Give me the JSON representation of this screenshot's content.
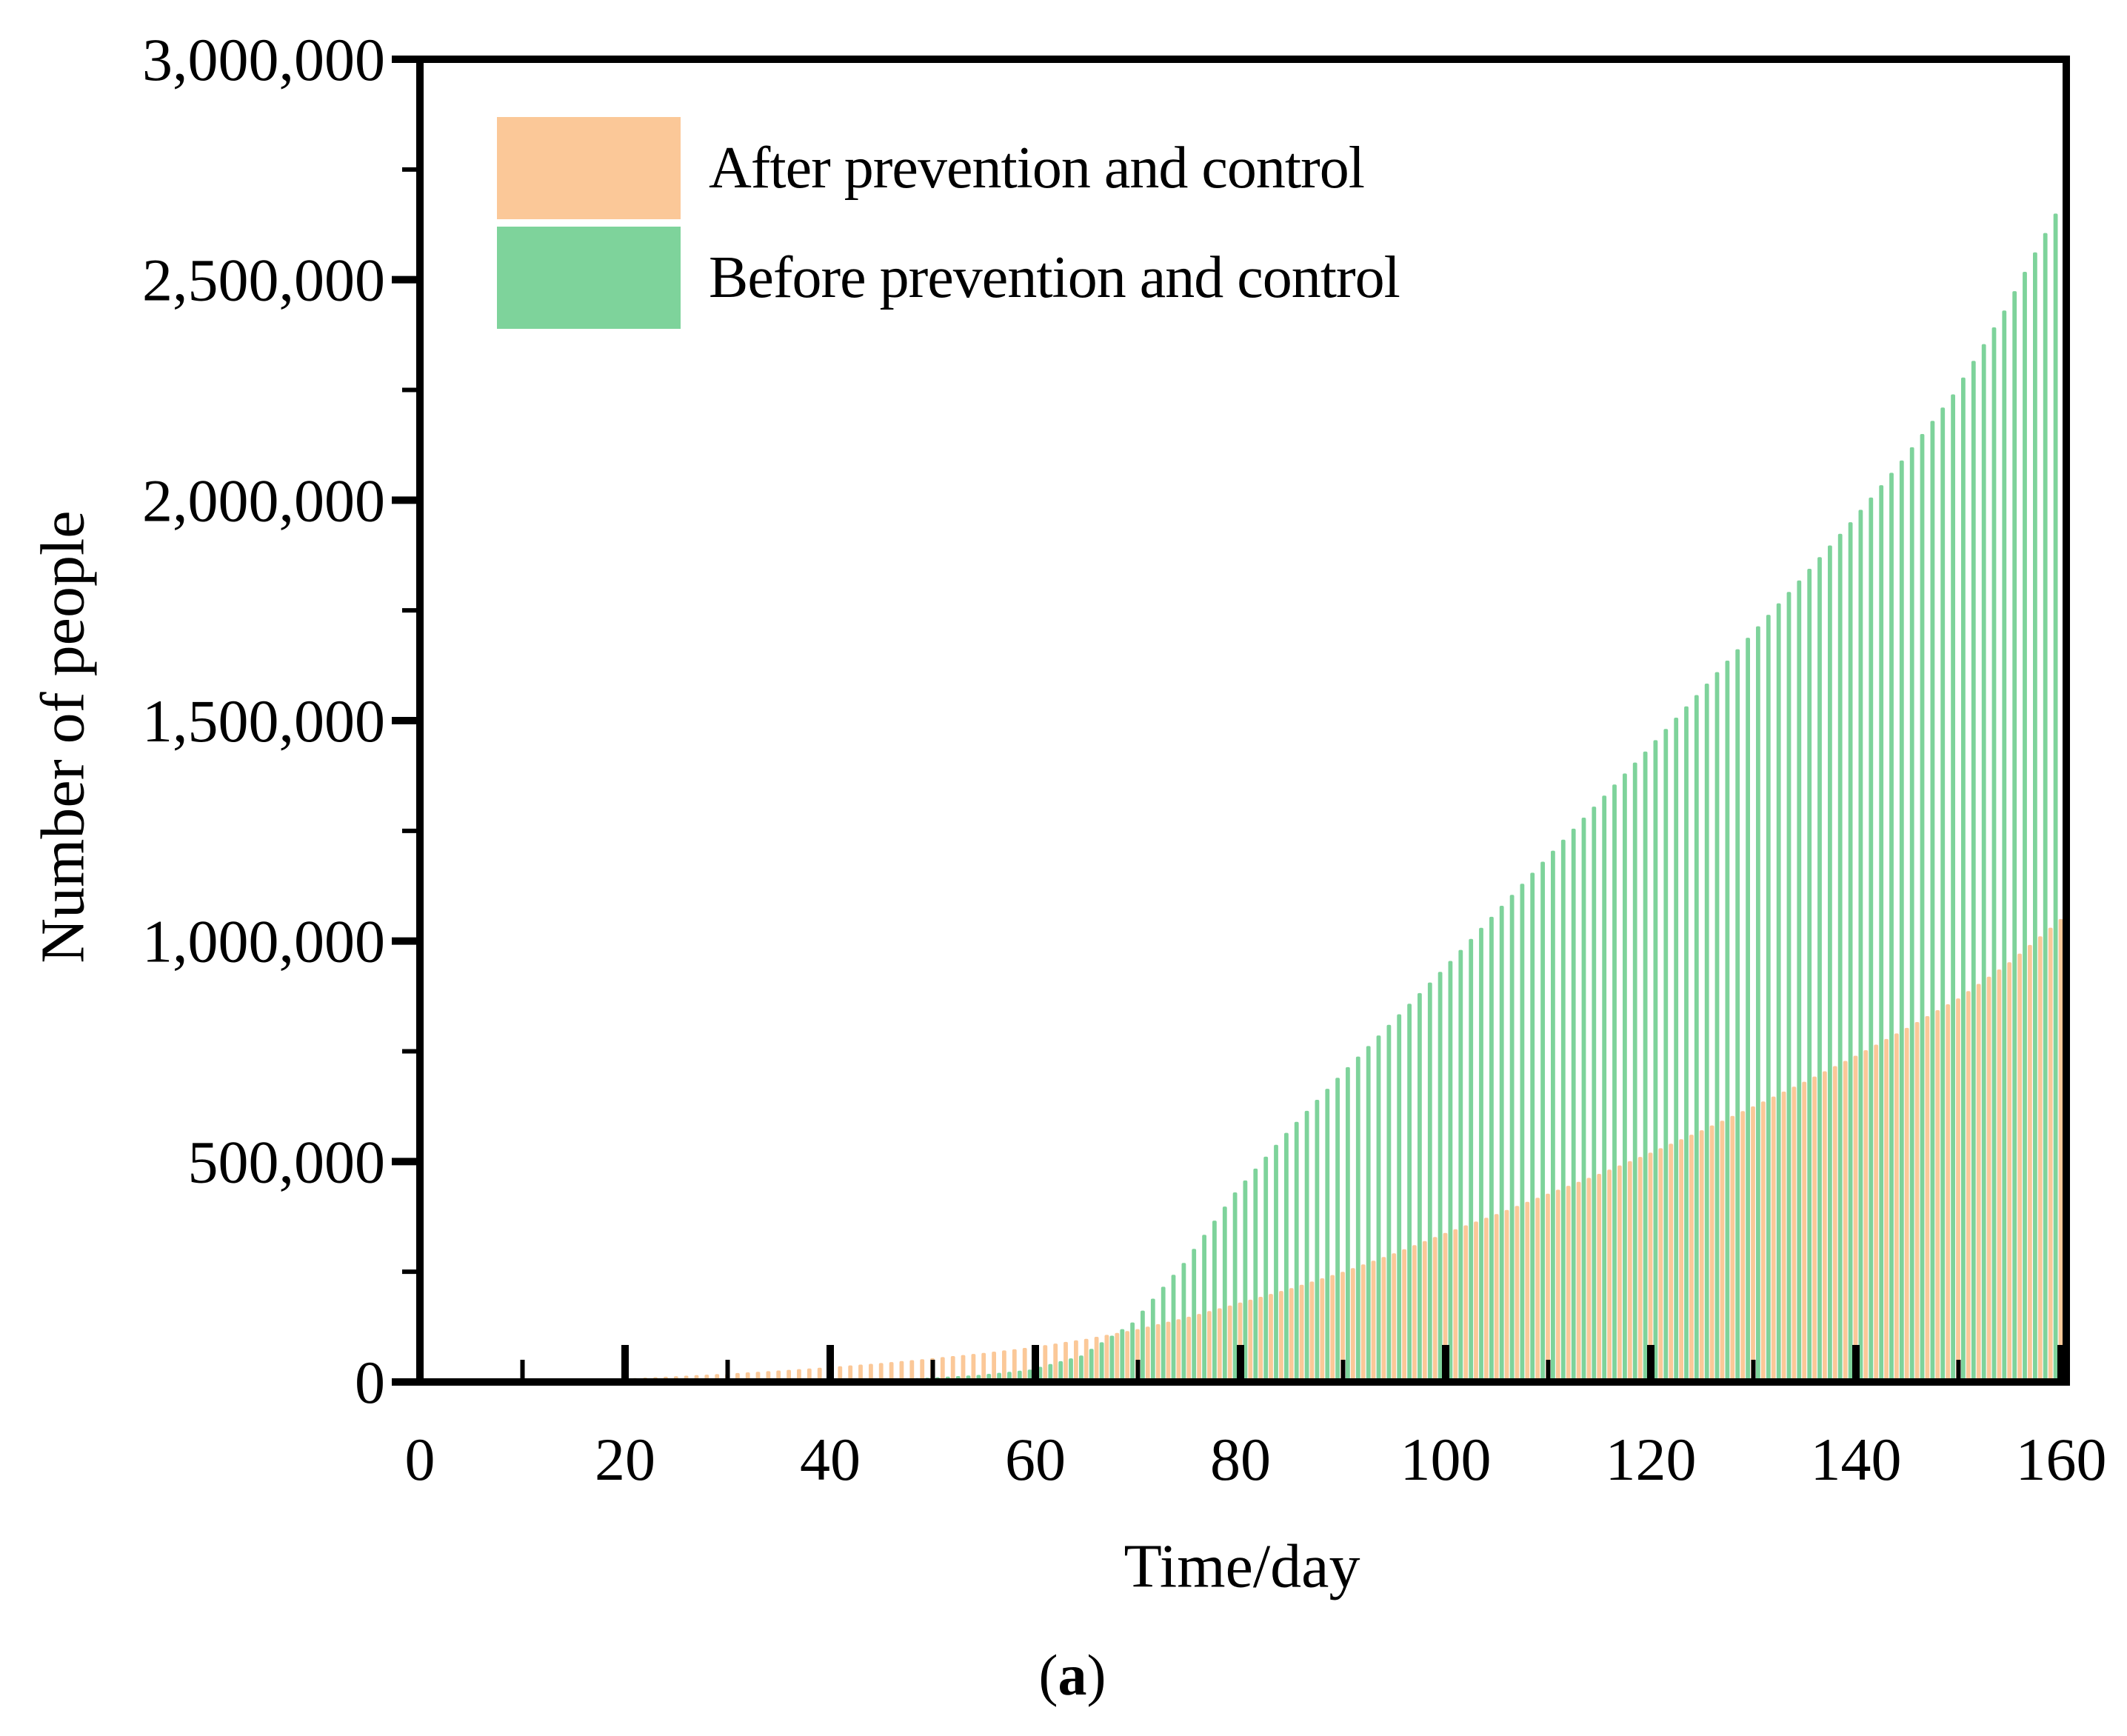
{
  "figure": {
    "caption_open": "(",
    "caption_letter": "a",
    "caption_close": ")"
  },
  "chart_data": {
    "type": "bar",
    "title": "",
    "xlabel": "Time/day",
    "ylabel": "Number of people",
    "xlim": [
      0,
      160
    ],
    "ylim": [
      0,
      3000000
    ],
    "grid": false,
    "x_axis": {
      "major_ticks": [
        0,
        20,
        40,
        60,
        80,
        100,
        120,
        140,
        160
      ],
      "major_tick_labels": [
        "0",
        "20",
        "40",
        "60",
        "80",
        "100",
        "120",
        "140",
        "160"
      ],
      "minor_step": 10
    },
    "y_axis": {
      "major_ticks": [
        0,
        500000,
        1000000,
        1500000,
        2000000,
        2500000,
        3000000
      ],
      "major_tick_labels": [
        "0",
        "500,000",
        "1,000,000",
        "1,500,000",
        "2,000,000",
        "2,500,000",
        "3,000,000"
      ],
      "minor_step": 250000
    },
    "legend": {
      "position": "top-left",
      "items": [
        {
          "label": "After prevention and control",
          "color": "#FBC898"
        },
        {
          "label": "Before prevention and control",
          "color": "#7ED39B"
        }
      ]
    },
    "bar_interval_days": 1,
    "sample_step_days": 5,
    "series": [
      {
        "name": "After prevention and control",
        "color": "#FBC898",
        "days": [
          0,
          5,
          10,
          15,
          20,
          25,
          30,
          35,
          40,
          45,
          50,
          55,
          60,
          65,
          70,
          75,
          80,
          85,
          90,
          95,
          100,
          105,
          110,
          115,
          120,
          125,
          130,
          135,
          140,
          145,
          150,
          155,
          160
        ],
        "values": [
          0,
          800,
          2000,
          4500,
          8000,
          13000,
          19000,
          26000,
          34000,
          43000,
          54000,
          66000,
          80000,
          98000,
          120000,
          148000,
          180000,
          213000,
          250000,
          292000,
          338000,
          381000,
          427000,
          472000,
          520000,
          571000,
          625000,
          681000,
          740000,
          803000,
          870000,
          952000,
          1050000
        ]
      },
      {
        "name": "Before prevention and control",
        "color": "#7ED39B",
        "days": [
          0,
          5,
          10,
          15,
          20,
          25,
          30,
          35,
          40,
          45,
          50,
          55,
          60,
          65,
          70,
          75,
          80,
          85,
          90,
          95,
          100,
          105,
          110,
          115,
          120,
          125,
          130,
          135,
          140,
          145,
          150,
          155,
          160
        ],
        "values": [
          0,
          0,
          0,
          100,
          300,
          600,
          1200,
          2000,
          3000,
          5500,
          9500,
          16000,
          28000,
          60000,
          135000,
          270000,
          430000,
          565000,
          690000,
          810000,
          930000,
          1055000,
          1180000,
          1305000,
          1430000,
          1558000,
          1688000,
          1818000,
          1950000,
          2090000,
          2240000,
          2430000,
          2650000
        ]
      }
    ]
  }
}
